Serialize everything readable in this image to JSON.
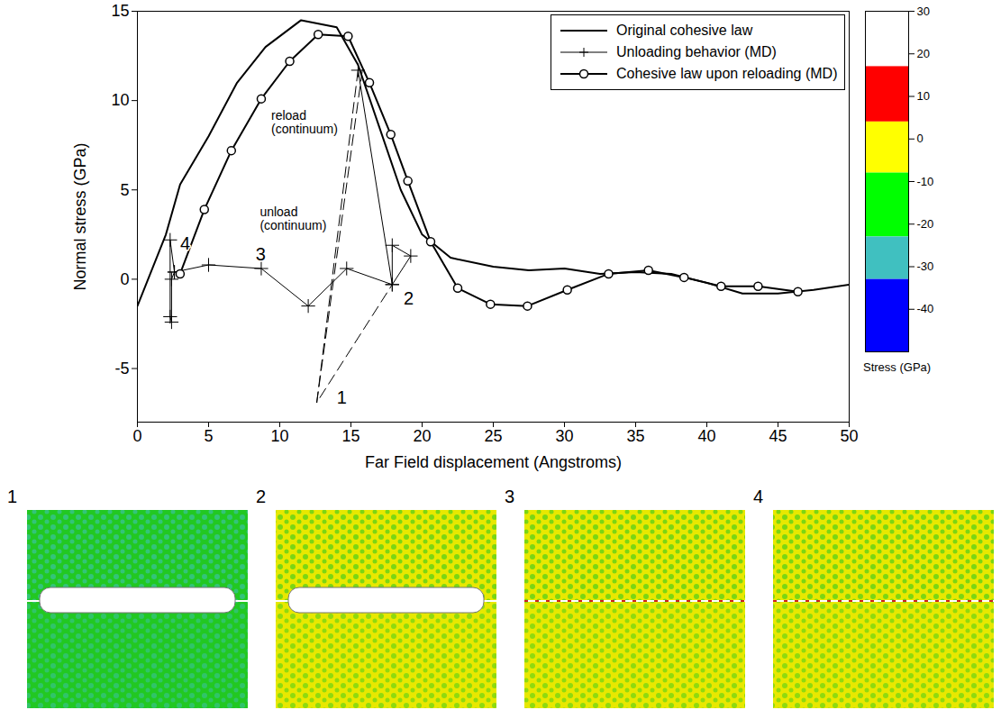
{
  "chart_data": {
    "type": "line",
    "xlabel": "Far Field displacement (Angstroms)",
    "ylabel": "Normal stress (GPa)",
    "xlim": [
      0,
      50
    ],
    "xticks": [
      0,
      5,
      10,
      15,
      20,
      25,
      30,
      35,
      40,
      45,
      50
    ],
    "ylim": [
      -8,
      15
    ],
    "yticks": [
      -5,
      0,
      5,
      10,
      15
    ],
    "legend": "upper right",
    "series": [
      {
        "name": "Original cohesive law",
        "color": "#000000",
        "marker": "none",
        "line_style": "solid",
        "x": [
          0,
          2,
          3,
          5,
          7,
          9,
          11.5,
          14,
          15.5,
          17,
          18.5,
          20,
          22,
          25,
          27.5,
          30,
          32.5,
          35,
          37.5,
          40,
          42.5,
          45,
          47.5,
          50
        ],
        "y": [
          -1.5,
          2.5,
          5.3,
          8,
          11,
          13,
          14.5,
          14.1,
          12,
          8.5,
          5,
          2.5,
          1.2,
          0.7,
          0.5,
          0.6,
          0.3,
          0.4,
          0.3,
          -0.2,
          -0.8,
          -0.8,
          -0.6,
          -0.3
        ]
      },
      {
        "name": "Unloading behavior (MD)",
        "color": "#000000",
        "marker": "plus",
        "line_style": "solid",
        "x": [
          15.5,
          17.9,
          17.9,
          19.2,
          17.9,
          14.7,
          12.0,
          8.7,
          5.0,
          2.6,
          2.3,
          2.3,
          2.4,
          2.4,
          2.6
        ],
        "y": [
          11.7,
          -0.3,
          1.9,
          1.3,
          -0.3,
          0.6,
          -1.5,
          0.6,
          0.8,
          0.4,
          2.2,
          -2.1,
          -2.4,
          0,
          0.4
        ]
      },
      {
        "name": "Cohesive law upon reloading (MD)",
        "color": "#000000",
        "marker": "circle",
        "line_style": "solid",
        "x": [
          3,
          4.7,
          6.6,
          8.7,
          10.7,
          12.7,
          14.8,
          16.3,
          17.8,
          19,
          20.6,
          22.5,
          24.8,
          27.4,
          30.2,
          33.1,
          35.9,
          38.4,
          41,
          43.6,
          46.4
        ],
        "y": [
          0.3,
          3.9,
          7.2,
          10.1,
          12.2,
          13.7,
          13.6,
          11,
          8.1,
          5.5,
          2.1,
          -0.5,
          -1.4,
          -1.5,
          -0.6,
          0.3,
          0.5,
          0.1,
          -0.4,
          -0.4,
          -0.7
        ]
      },
      {
        "color": "#000000",
        "marker": "none",
        "line_style": "dashed",
        "x": [
          15.5,
          12.6,
          17.9
        ],
        "y": [
          11.7,
          -6.9,
          -0.3
        ]
      },
      {
        "color": "#000000",
        "marker": "none",
        "line_style": "dashed",
        "x": [
          12.6,
          15.8
        ],
        "y": [
          -6.9,
          11.7
        ]
      }
    ],
    "annotations": [
      {
        "text": "reload (continuum)",
        "x": 9.4,
        "y": 8.8
      },
      {
        "text": "unload (continuum)",
        "x": 8.6,
        "y": 3.4
      },
      {
        "text": "1",
        "x": 14.0,
        "y": -6.65
      },
      {
        "text": "2",
        "x": 18.7,
        "y": -1.1
      },
      {
        "text": "3",
        "x": 8.3,
        "y": 1.4
      },
      {
        "text": "4",
        "x": 3.0,
        "y": 2.0
      }
    ],
    "colorbar": {
      "label": "Stress (GPa)",
      "range": [
        -50,
        30
      ],
      "ticks": [
        30,
        20,
        10,
        0,
        -10,
        -20,
        -30,
        -40
      ],
      "bands": [
        {
          "from": 17,
          "to": 30,
          "color": "#ffffff"
        },
        {
          "from": 4,
          "to": 17,
          "color": "#ff0000"
        },
        {
          "from": -8,
          "to": 4,
          "color": "#ffff00"
        },
        {
          "from": -23,
          "to": -8,
          "color": "#00ff00"
        },
        {
          "from": -33,
          "to": -23,
          "color": "#40c0c0"
        },
        {
          "from": -50,
          "to": -33,
          "color": "#0000ff"
        }
      ]
    }
  },
  "snapshots": [
    {
      "label": "1",
      "top": "#22c822",
      "bottom": "#22c822",
      "spots": "#40c0c0",
      "opening": true
    },
    {
      "label": "2",
      "top": "#e8e800",
      "bottom": "#e8e800",
      "spots": "#22c822",
      "opening": true
    },
    {
      "label": "3",
      "top": "#e8e800",
      "bottom": "#e8e800",
      "spots": "#22c822",
      "opening": false
    },
    {
      "label": "4",
      "top": "#e8e800",
      "bottom": "#e8e800",
      "spots": "#22c822",
      "opening": false
    }
  ]
}
